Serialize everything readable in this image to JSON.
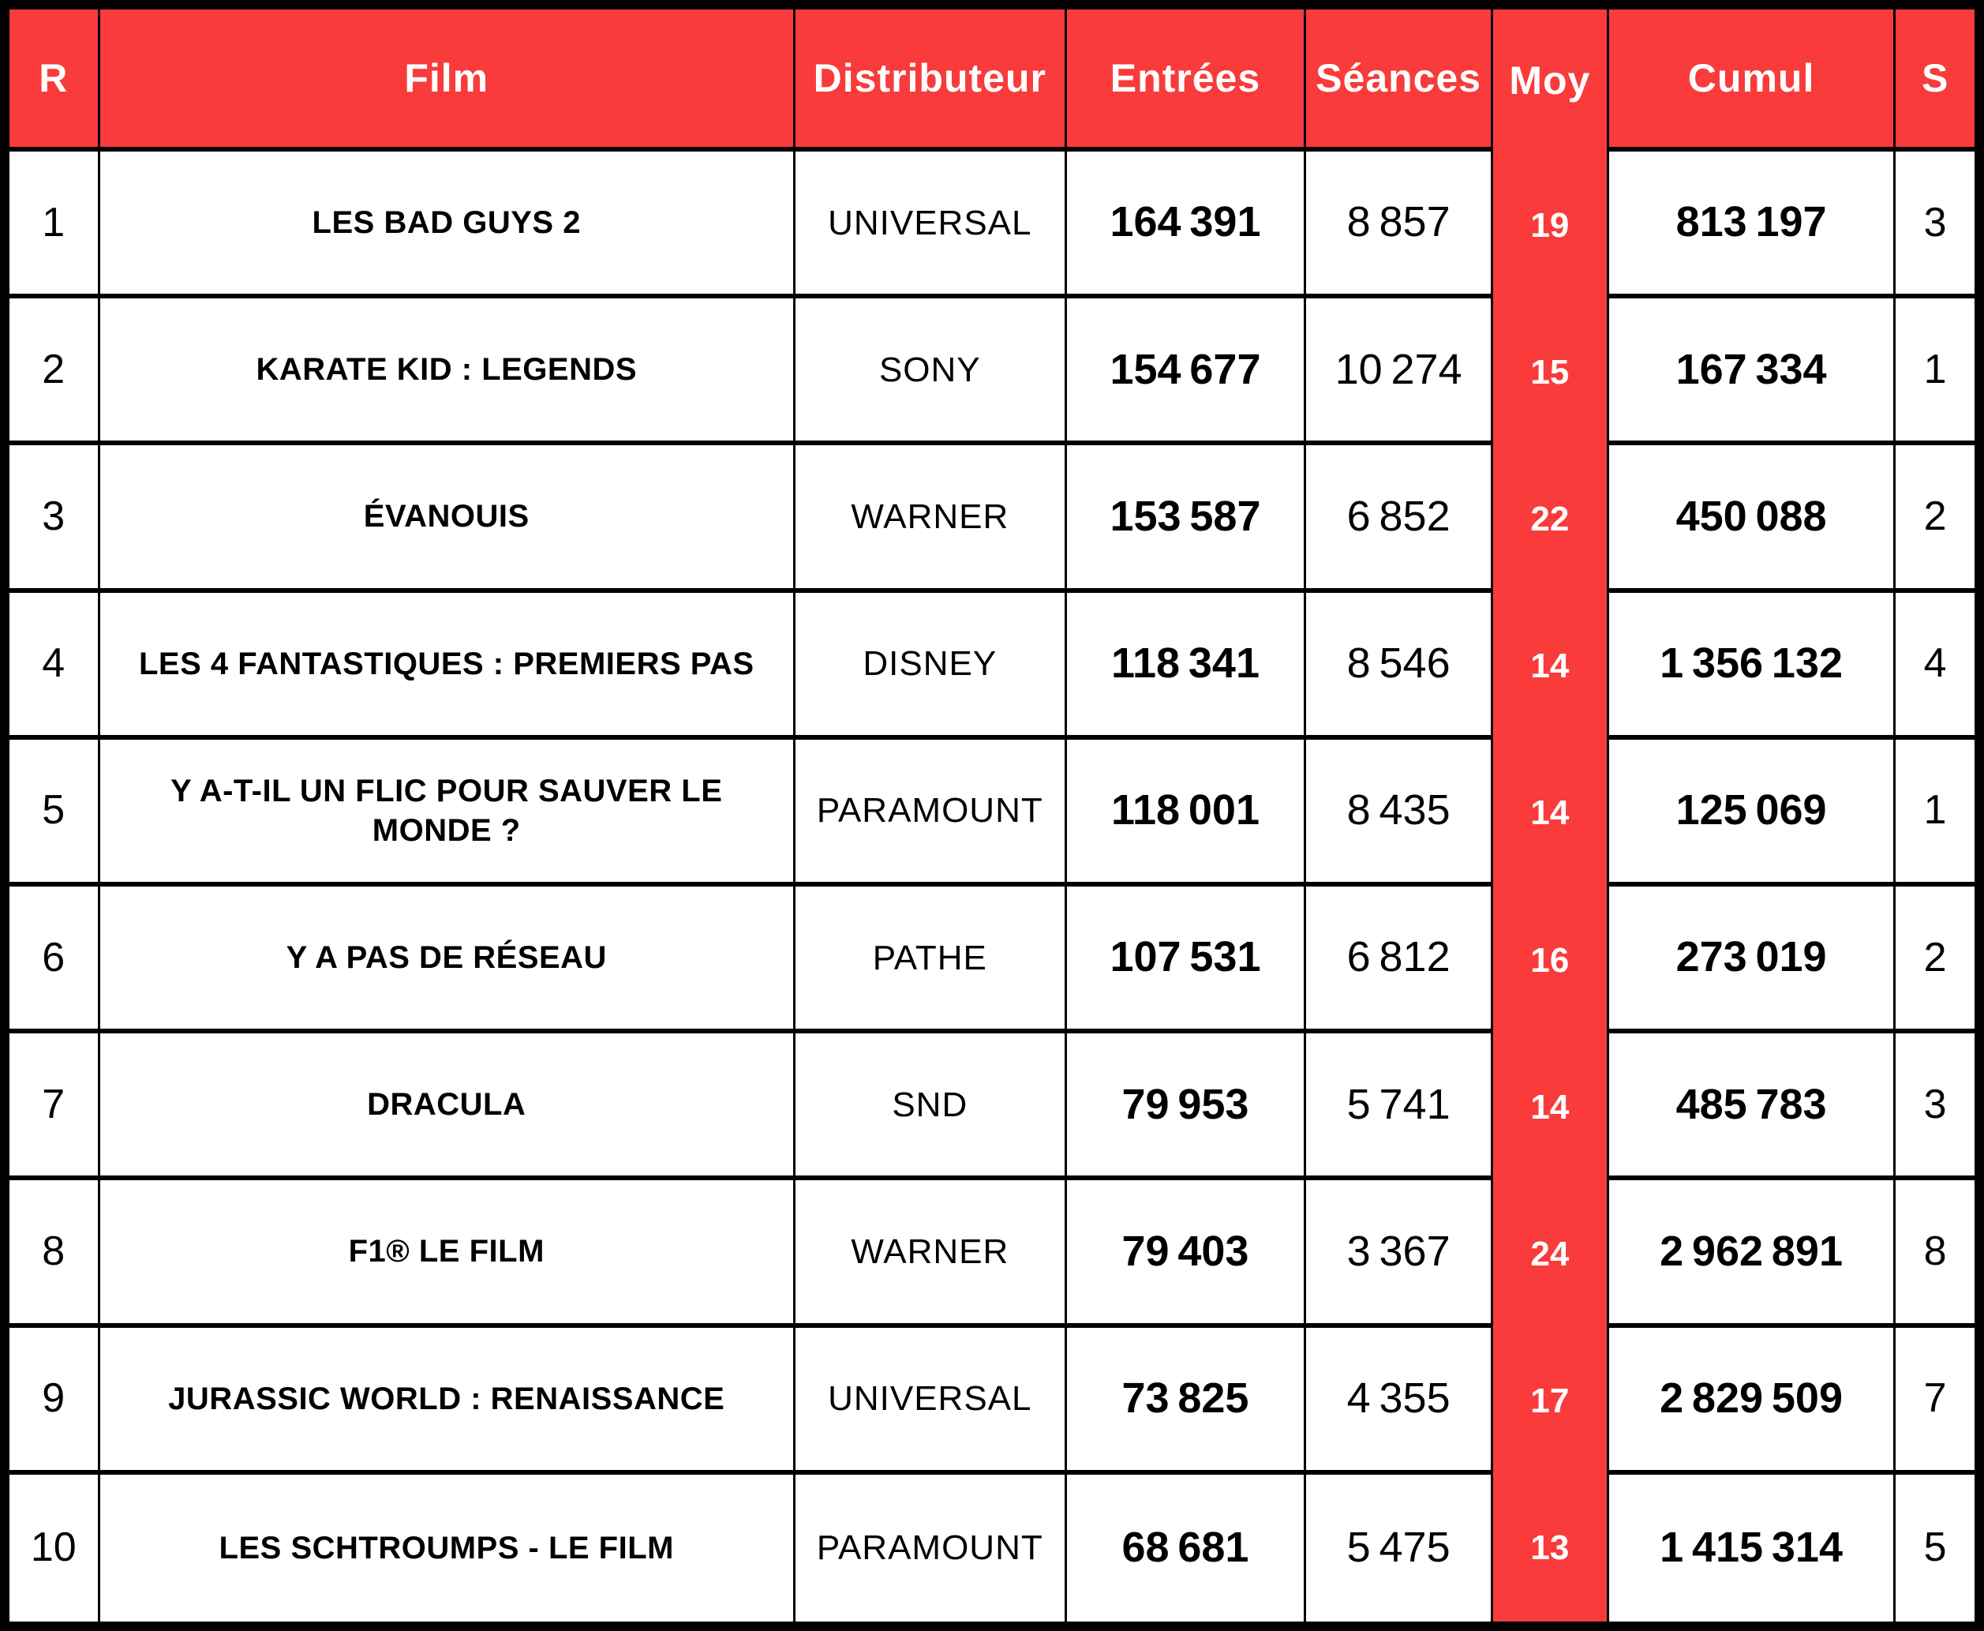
{
  "colors": {
    "accent_red": "#F93B3B",
    "border_black": "#000000"
  },
  "table": {
    "headers": {
      "rank": "R",
      "film": "Film",
      "distributor": "Distributeur",
      "admissions": "Entrées",
      "screenings": "Séances",
      "average": "Moy",
      "cumulative": "Cumul",
      "weeks": "S"
    },
    "rows": [
      {
        "rank": "1",
        "film": "LES BAD GUYS 2",
        "distributor": "UNIVERSAL",
        "admissions": "164 391",
        "screenings": "8 857",
        "average": "19",
        "cumulative": "813 197",
        "weeks": "3"
      },
      {
        "rank": "2",
        "film": "KARATE KID : LEGENDS",
        "distributor": "SONY",
        "admissions": "154 677",
        "screenings": "10 274",
        "average": "15",
        "cumulative": "167 334",
        "weeks": "1"
      },
      {
        "rank": "3",
        "film": "ÉVANOUIS",
        "distributor": "WARNER",
        "admissions": "153 587",
        "screenings": "6 852",
        "average": "22",
        "cumulative": "450 088",
        "weeks": "2"
      },
      {
        "rank": "4",
        "film": "LES 4 FANTASTIQUES : PREMIERS PAS",
        "distributor": "DISNEY",
        "admissions": "118 341",
        "screenings": "8 546",
        "average": "14",
        "cumulative": "1 356 132",
        "weeks": "4"
      },
      {
        "rank": "5",
        "film": "Y A-T-IL UN FLIC POUR SAUVER LE MONDE ?",
        "distributor": "PARAMOUNT",
        "admissions": "118 001",
        "screenings": "8 435",
        "average": "14",
        "cumulative": "125 069",
        "weeks": "1"
      },
      {
        "rank": "6",
        "film": "Y A PAS DE RÉSEAU",
        "distributor": "PATHE",
        "admissions": "107 531",
        "screenings": "6 812",
        "average": "16",
        "cumulative": "273 019",
        "weeks": "2"
      },
      {
        "rank": "7",
        "film": "DRACULA",
        "distributor": "SND",
        "admissions": "79 953",
        "screenings": "5 741",
        "average": "14",
        "cumulative": "485 783",
        "weeks": "3"
      },
      {
        "rank": "8",
        "film": "F1® LE FILM",
        "distributor": "WARNER",
        "admissions": "79 403",
        "screenings": "3 367",
        "average": "24",
        "cumulative": "2 962 891",
        "weeks": "8"
      },
      {
        "rank": "9",
        "film": "JURASSIC WORLD : RENAISSANCE",
        "distributor": "UNIVERSAL",
        "admissions": "73 825",
        "screenings": "4 355",
        "average": "17",
        "cumulative": "2 829 509",
        "weeks": "7"
      },
      {
        "rank": "10",
        "film": "LES SCHTROUMPS - LE FILM",
        "distributor": "PARAMOUNT",
        "admissions": "68 681",
        "screenings": "5 475",
        "average": "13",
        "cumulative": "1 415 314",
        "weeks": "5"
      }
    ]
  },
  "chart_data": {
    "type": "table",
    "columns": [
      "R",
      "Film",
      "Distributeur",
      "Entrées",
      "Séances",
      "Moy",
      "Cumul",
      "S"
    ],
    "rows": [
      [
        1,
        "LES BAD GUYS 2",
        "UNIVERSAL",
        164391,
        8857,
        19,
        813197,
        3
      ],
      [
        2,
        "KARATE KID : LEGENDS",
        "SONY",
        154677,
        10274,
        15,
        167334,
        1
      ],
      [
        3,
        "ÉVANOUIS",
        "WARNER",
        153587,
        6852,
        22,
        450088,
        2
      ],
      [
        4,
        "LES 4 FANTASTIQUES : PREMIERS PAS",
        "DISNEY",
        118341,
        8546,
        14,
        1356132,
        4
      ],
      [
        5,
        "Y A-T-IL UN FLIC POUR SAUVER LE MONDE ?",
        "PARAMOUNT",
        118001,
        8435,
        14,
        125069,
        1
      ],
      [
        6,
        "Y A PAS DE RÉSEAU",
        "PATHE",
        107531,
        6812,
        16,
        273019,
        2
      ],
      [
        7,
        "DRACULA",
        "SND",
        79953,
        5741,
        14,
        485783,
        3
      ],
      [
        8,
        "F1® LE FILM",
        "WARNER",
        79403,
        3367,
        24,
        2962891,
        8
      ],
      [
        9,
        "JURASSIC WORLD : RENAISSANCE",
        "UNIVERSAL",
        73825,
        4355,
        17,
        2829509,
        7
      ],
      [
        10,
        "LES SCHTROUMPS - LE FILM",
        "PARAMOUNT",
        68681,
        5475,
        13,
        1415314,
        5
      ]
    ],
    "title": "",
    "legend": "header row and Moy column highlighted in red"
  }
}
